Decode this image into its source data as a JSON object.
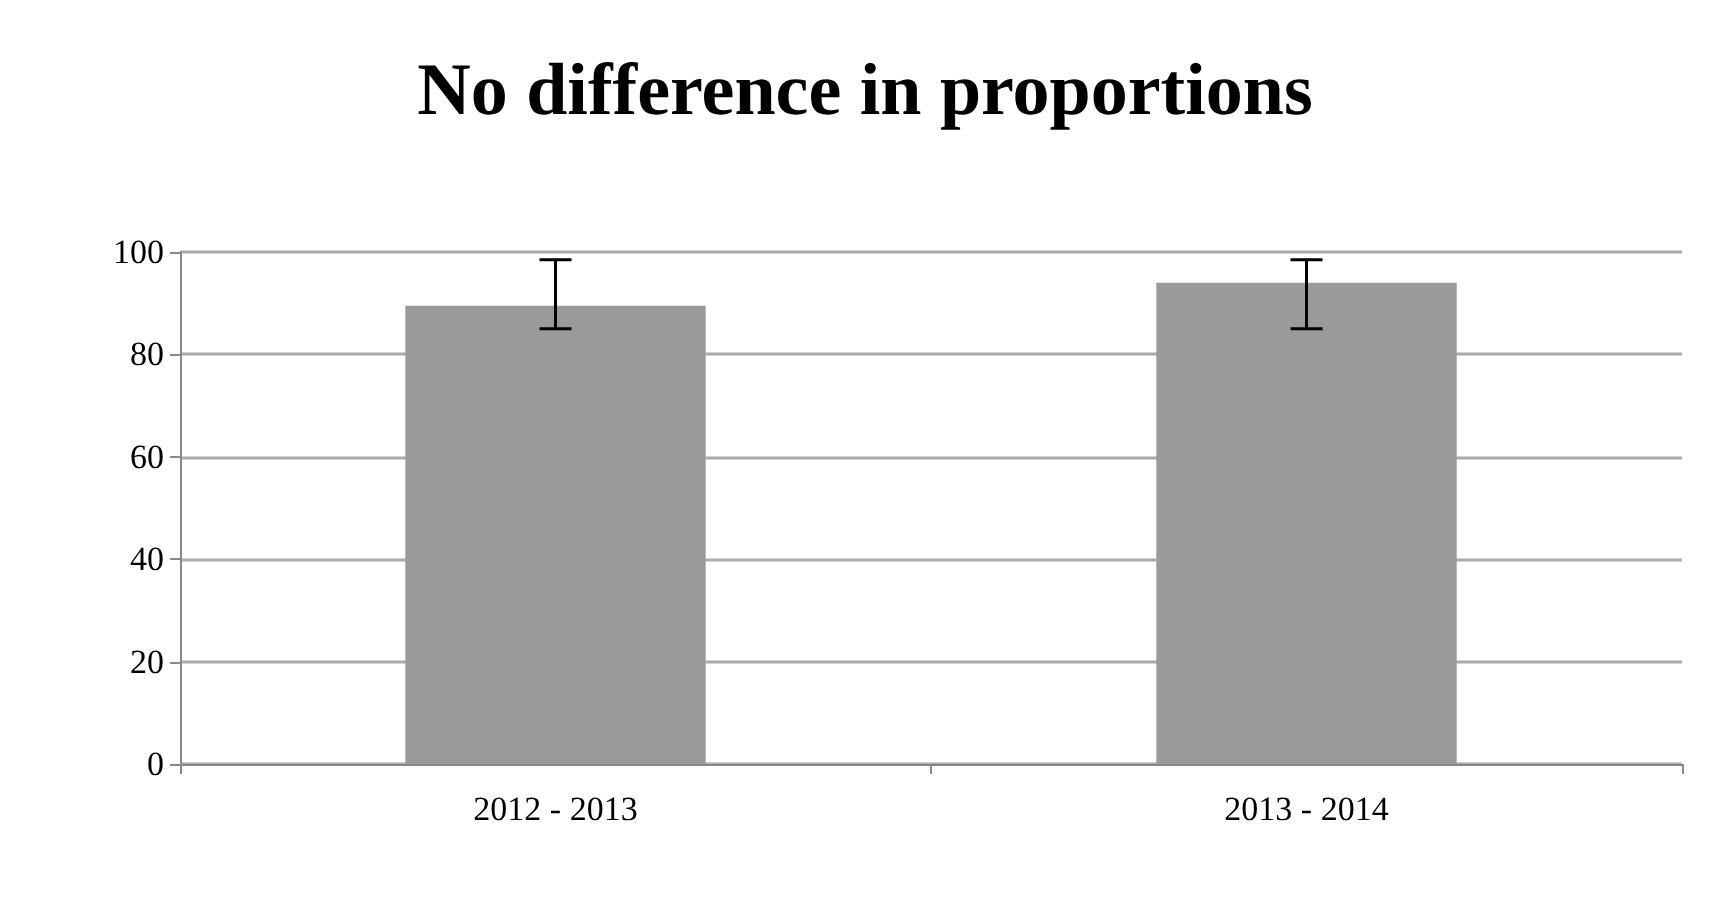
{
  "chart_data": {
    "type": "bar",
    "title": "No difference in proportions",
    "categories": [
      "2012 - 2013",
      "2013 - 2014"
    ],
    "values": [
      89.5,
      94
    ],
    "errors": [
      [
        85,
        98.5
      ],
      [
        85,
        98.5
      ]
    ],
    "color": "#9a9a9a",
    "ylim": [
      0,
      100
    ],
    "yticks": [
      0,
      20,
      40,
      60,
      80,
      100
    ],
    "grid": "y"
  }
}
